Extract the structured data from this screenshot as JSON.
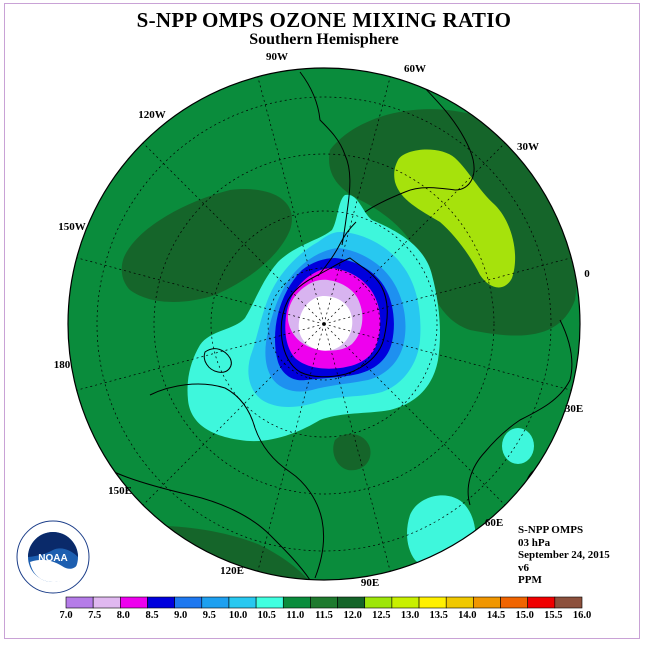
{
  "title": "S-NPP OMPS OZONE MIXING RATIO",
  "subtitle": "Southern Hemisphere",
  "longitude_labels": [
    "90W",
    "60W",
    "30W",
    "0",
    "30E",
    "60E",
    "90E",
    "120E",
    "150E",
    "180",
    "150W",
    "120W"
  ],
  "info": {
    "instrument": "S-NPP OMPS",
    "level": "03 hPa",
    "date": "September 24, 2015",
    "version": "v6",
    "unit": "PPM"
  },
  "logo_text": "NOAA",
  "colorbar": {
    "ticks": [
      "7.0",
      "7.5",
      "8.0",
      "8.5",
      "9.0",
      "9.5",
      "10.0",
      "10.5",
      "11.0",
      "11.5",
      "12.0",
      "12.5",
      "13.0",
      "13.5",
      "14.0",
      "14.5",
      "15.0",
      "15.5",
      "16.0"
    ],
    "colors": [
      "#b57ce8",
      "#e0b8f0",
      "#ee00ee",
      "#0000dd",
      "#1e78f0",
      "#1ea0f0",
      "#28c8f0",
      "#40ffe0",
      "#0a8c3c",
      "#1e7a2e",
      "#146428",
      "#9ee60a",
      "#c8f000",
      "#fff000",
      "#f0c800",
      "#f09600",
      "#f06400",
      "#f00000",
      "#8c503c"
    ]
  },
  "colors": {
    "background_field": "#0a8c3c",
    "dark_green": "#15652a",
    "lime": "#a6e20c",
    "cyan": "#3ef7dc",
    "light_blue": "#28c8f0",
    "blue": "#1e90f0",
    "deep_blue": "#0000dd",
    "magenta": "#ee00ee",
    "lavender": "#d8b4f0",
    "white": "#ffffff"
  }
}
